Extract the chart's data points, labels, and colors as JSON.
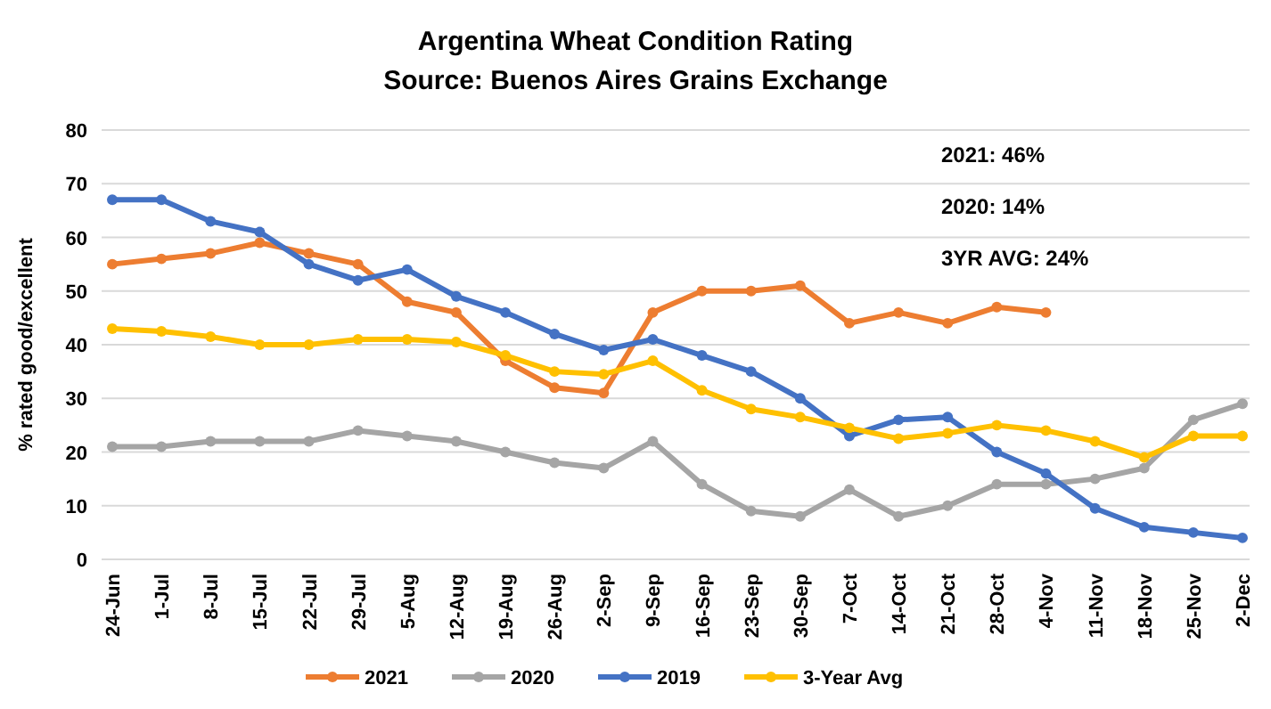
{
  "chart_data": {
    "type": "line",
    "title": "Argentina Wheat Condition Rating",
    "subtitle": "Source: Buenos Aires Grains Exchange",
    "ylabel": "% rated good/excellent",
    "categories": [
      "24-Jun",
      "1-Jul",
      "8-Jul",
      "15-Jul",
      "22-Jul",
      "29-Jul",
      "5-Aug",
      "12-Aug",
      "19-Aug",
      "26-Aug",
      "2-Sep",
      "9-Sep",
      "16-Sep",
      "23-Sep",
      "30-Sep",
      "7-Oct",
      "14-Oct",
      "21-Oct",
      "28-Oct",
      "4-Nov",
      "11-Nov",
      "18-Nov",
      "25-Nov",
      "2-Dec"
    ],
    "series": [
      {
        "name": "2021",
        "color": "#ed7d31",
        "values": [
          55,
          56,
          57,
          59,
          57,
          55,
          48,
          46,
          37,
          32,
          31,
          46,
          50,
          50,
          51,
          44,
          46,
          44,
          47,
          46,
          null,
          null,
          null,
          null
        ]
      },
      {
        "name": "2020",
        "color": "#a5a5a5",
        "values": [
          21,
          21,
          22,
          22,
          22,
          24,
          23,
          22,
          20,
          18,
          17,
          22,
          14,
          9,
          8,
          13,
          8,
          10,
          14,
          14,
          15,
          17,
          26,
          29
        ]
      },
      {
        "name": "2019",
        "color": "#4472c4",
        "values": [
          67,
          67,
          63,
          61,
          55,
          52,
          54,
          49,
          46,
          42,
          39,
          41,
          38,
          35,
          30,
          23,
          26,
          26.5,
          20,
          16,
          9.5,
          6,
          5,
          4
        ]
      },
      {
        "name": "3-Year Avg",
        "color": "#ffc000",
        "values": [
          43,
          42.5,
          41.5,
          40,
          40,
          41,
          41,
          40.5,
          38,
          35,
          34.5,
          37,
          31.5,
          28,
          26.5,
          24.5,
          22.5,
          23.5,
          25,
          24,
          22,
          19,
          23,
          23
        ]
      }
    ],
    "ylim": [
      0,
      80
    ],
    "yticks": [
      0,
      10,
      20,
      30,
      40,
      50,
      60,
      70,
      80
    ],
    "grid": "y",
    "legend": "bottom",
    "marker": "circle",
    "annotations": [
      "2021: 46%",
      "2020: 14%",
      "3YR AVG: 24%"
    ]
  }
}
